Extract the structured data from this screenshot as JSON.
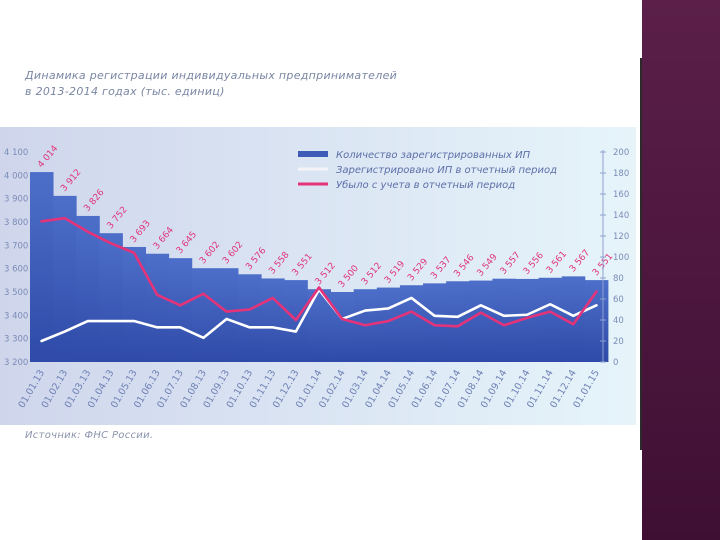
{
  "title_line1": "Динамика регистрации индивидуальных предпринимателей",
  "title_line2": "в 2013-2014 годах (тыс. единиц)",
  "source": "Источник: ФНС России.",
  "chart_data": {
    "type": "bar",
    "categories": [
      "01.01.13",
      "01.02.13",
      "01.03.13",
      "01.04.13",
      "01.05.13",
      "01.06.13",
      "01.07.13",
      "01.08.13",
      "01.09.13",
      "01.10.13",
      "01.11.13",
      "01.12.13",
      "01.01.14",
      "01.02.14",
      "01.03.14",
      "01.04.14",
      "01.05.14",
      "01.06.14",
      "01.07.14",
      "01.08.14",
      "01.09.14",
      "01.10.14",
      "01.11.14",
      "01.12.14",
      "01.01.15"
    ],
    "ylim_left": [
      3200,
      4100
    ],
    "yticks_left": [
      "3 200",
      "3 300",
      "3 400",
      "3 500",
      "3 600",
      "3 700",
      "3 800",
      "3 900",
      "4 000",
      "4 100"
    ],
    "ylim_right": [
      0,
      200
    ],
    "yticks_right": [
      "0",
      "20",
      "40",
      "60",
      "80",
      "100",
      "120",
      "140",
      "160",
      "180",
      "200"
    ],
    "series": [
      {
        "name": "Количество зарегистрированных ИП",
        "type": "bar",
        "axis": "left",
        "color": "#3e5bb8",
        "values": [
          4014,
          3912,
          3826,
          3752,
          3693,
          3664,
          3645,
          3602,
          3602,
          3576,
          3558,
          3551,
          3512,
          3500,
          3512,
          3519,
          3529,
          3537,
          3546,
          3549,
          3557,
          3556,
          3561,
          3567,
          3551
        ],
        "labels": [
          "4 014",
          "3 912",
          "3 826",
          "3 752",
          "3 693",
          "3 664",
          "3 645",
          "3 602",
          "3 602",
          "3 576",
          "3 558",
          "3 551",
          "3 512",
          "3 500",
          "3 512",
          "3 519",
          "3 529",
          "3 537",
          "3 546",
          "3 549",
          "3 557",
          "3 556",
          "3 561",
          "3 567",
          "3 551"
        ]
      },
      {
        "name": "Зарегистрировано ИП в отчетный период",
        "type": "line",
        "axis": "right",
        "color": "#ffffff",
        "values": [
          20,
          29,
          39,
          39,
          39,
          33,
          33,
          23,
          41,
          33,
          33,
          29,
          69,
          41,
          49,
          51,
          61,
          44,
          43,
          54,
          44,
          45,
          55,
          44,
          54
        ]
      },
      {
        "name": "Убыло с учета в отчетный период",
        "type": "line",
        "axis": "right",
        "color": "#e5337a",
        "values": [
          134,
          137,
          124,
          113,
          104,
          64,
          54,
          65,
          48,
          50,
          61,
          40,
          71,
          41,
          35,
          39,
          48,
          35,
          34,
          47,
          35,
          42,
          48,
          36,
          67
        ]
      }
    ],
    "legend_position": "top-right",
    "grid": false
  }
}
